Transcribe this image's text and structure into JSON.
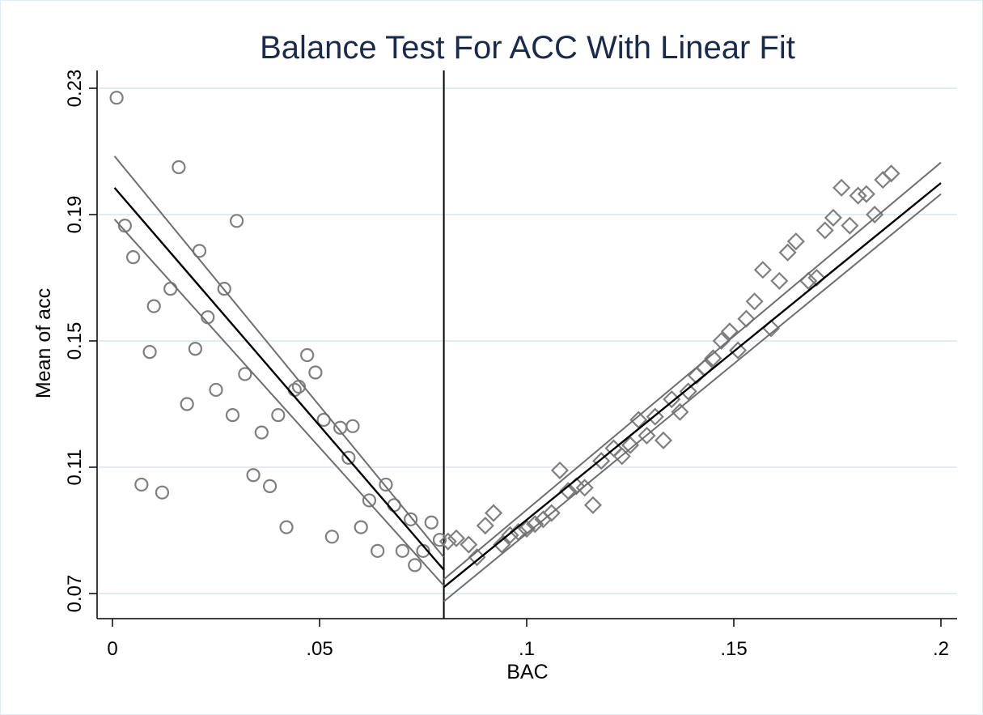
{
  "chart_data": {
    "type": "scatter",
    "title": "Balance Test For ACC With Linear Fit",
    "xlabel": "BAC",
    "ylabel": "Mean of acc",
    "xlim": [
      0,
      0.2
    ],
    "ylim": [
      0.07,
      0.23
    ],
    "x_ticks": [
      0,
      0.05,
      0.1,
      0.15,
      0.2
    ],
    "x_tick_labels": [
      "0",
      ".05",
      ".1",
      ".15",
      ".2"
    ],
    "y_ticks": [
      0.07,
      0.11,
      0.15,
      0.19,
      0.23
    ],
    "y_tick_labels": [
      "0.07",
      "0.11",
      "0.15",
      "0.19",
      "0.23"
    ],
    "grid": true,
    "cutoff": 0.08,
    "colors": {
      "markers": "#7f7f7f",
      "fit_line": "#000000",
      "ci_lines": "#6e6e6e",
      "grid": "#e3ebf2",
      "title": "#1a2a4a"
    },
    "series": [
      {
        "marker": "circle",
        "points": [
          [
            0.001,
            0.227
          ],
          [
            0.003,
            0.1865
          ],
          [
            0.005,
            0.1765
          ],
          [
            0.007,
            0.1045
          ],
          [
            0.009,
            0.1465
          ],
          [
            0.01,
            0.161
          ],
          [
            0.012,
            0.102
          ],
          [
            0.014,
            0.1665
          ],
          [
            0.016,
            0.205
          ],
          [
            0.018,
            0.13
          ],
          [
            0.02,
            0.1475
          ],
          [
            0.021,
            0.1785
          ],
          [
            0.023,
            0.1575
          ],
          [
            0.025,
            0.1345
          ],
          [
            0.027,
            0.1665
          ],
          [
            0.029,
            0.1265
          ],
          [
            0.03,
            0.188
          ],
          [
            0.032,
            0.1395
          ],
          [
            0.034,
            0.1075
          ],
          [
            0.036,
            0.121
          ],
          [
            0.038,
            0.104
          ],
          [
            0.04,
            0.1265
          ],
          [
            0.042,
            0.091
          ],
          [
            0.044,
            0.1345
          ],
          [
            0.045,
            0.1355
          ],
          [
            0.047,
            0.1455
          ],
          [
            0.049,
            0.14
          ],
          [
            0.051,
            0.125
          ],
          [
            0.053,
            0.088
          ],
          [
            0.055,
            0.1225
          ],
          [
            0.057,
            0.113
          ],
          [
            0.058,
            0.123
          ],
          [
            0.06,
            0.091
          ],
          [
            0.062,
            0.0995
          ],
          [
            0.064,
            0.0835
          ],
          [
            0.066,
            0.1045
          ],
          [
            0.068,
            0.098
          ],
          [
            0.07,
            0.0835
          ],
          [
            0.072,
            0.0935
          ],
          [
            0.073,
            0.079
          ],
          [
            0.075,
            0.0835
          ],
          [
            0.077,
            0.0925
          ],
          [
            0.079,
            0.087
          ]
        ]
      },
      {
        "marker": "diamond",
        "points": [
          [
            0.081,
            0.0865
          ],
          [
            0.083,
            0.0875
          ],
          [
            0.086,
            0.0855
          ],
          [
            0.088,
            0.0815
          ],
          [
            0.09,
            0.0915
          ],
          [
            0.092,
            0.0955
          ],
          [
            0.094,
            0.0855
          ],
          [
            0.096,
            0.0885
          ],
          [
            0.098,
            0.0895
          ],
          [
            0.1,
            0.0905
          ],
          [
            0.102,
            0.092
          ],
          [
            0.104,
            0.0935
          ],
          [
            0.106,
            0.0955
          ],
          [
            0.108,
            0.109
          ],
          [
            0.11,
            0.1025
          ],
          [
            0.112,
            0.104
          ],
          [
            0.114,
            0.1035
          ],
          [
            0.116,
            0.098
          ],
          [
            0.118,
            0.112
          ],
          [
            0.121,
            0.116
          ],
          [
            0.123,
            0.1135
          ],
          [
            0.125,
            0.117
          ],
          [
            0.127,
            0.125
          ],
          [
            0.129,
            0.12
          ],
          [
            0.131,
            0.126
          ],
          [
            0.133,
            0.1185
          ],
          [
            0.135,
            0.1315
          ],
          [
            0.137,
            0.1275
          ],
          [
            0.139,
            0.134
          ],
          [
            0.141,
            0.139
          ],
          [
            0.143,
            0.1415
          ],
          [
            0.145,
            0.1445
          ],
          [
            0.147,
            0.15
          ],
          [
            0.149,
            0.153
          ],
          [
            0.151,
            0.147
          ],
          [
            0.153,
            0.157
          ],
          [
            0.155,
            0.1625
          ],
          [
            0.157,
            0.1725
          ],
          [
            0.159,
            0.154
          ],
          [
            0.161,
            0.169
          ],
          [
            0.163,
            0.178
          ],
          [
            0.165,
            0.1815
          ],
          [
            0.168,
            0.169
          ],
          [
            0.17,
            0.17
          ],
          [
            0.172,
            0.185
          ],
          [
            0.174,
            0.189
          ],
          [
            0.176,
            0.1985
          ],
          [
            0.178,
            0.1865
          ],
          [
            0.18,
            0.196
          ],
          [
            0.182,
            0.1965
          ],
          [
            0.184,
            0.19
          ],
          [
            0.186,
            0.201
          ],
          [
            0.188,
            0.203
          ]
        ]
      }
    ],
    "fit_lines": [
      {
        "segment": "left",
        "fit": [
          [
            0.0005,
            0.1985
          ],
          [
            0.08,
            0.0775
          ]
        ],
        "ci_upper": [
          [
            0.0005,
            0.2085
          ],
          [
            0.08,
            0.0815
          ]
        ],
        "ci_lower": [
          [
            0.0005,
            0.1885
          ],
          [
            0.08,
            0.0725
          ]
        ]
      },
      {
        "segment": "right",
        "fit": [
          [
            0.08,
            0.072
          ],
          [
            0.2,
            0.2
          ]
        ],
        "ci_upper": [
          [
            0.08,
            0.0745
          ],
          [
            0.2,
            0.2065
          ]
        ],
        "ci_lower": [
          [
            0.08,
            0.0675
          ],
          [
            0.2,
            0.1965
          ]
        ]
      }
    ]
  }
}
